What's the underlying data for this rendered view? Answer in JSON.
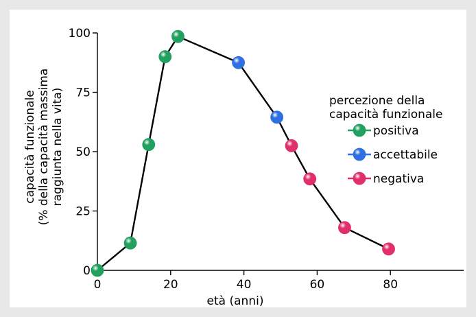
{
  "chart_data": {
    "type": "line",
    "xlabel": "età (anni)",
    "ylabel_lines": [
      "capacità funzionale",
      "(% della capacità massima",
      "raggiunta nella vita)"
    ],
    "xlim": [
      0,
      100
    ],
    "ylim": [
      0,
      100
    ],
    "x_ticks": [
      0,
      20,
      40,
      60,
      80
    ],
    "y_ticks": [
      0,
      25,
      50,
      75,
      100
    ],
    "grid": false,
    "legend_placement": "right",
    "legend": {
      "title_lines": [
        "percezione della",
        "capacità funzionale"
      ],
      "entries": [
        {
          "key": "positiva",
          "label": "positiva",
          "color": "#22a060"
        },
        {
          "key": "accettabile",
          "label": "accettabile",
          "color": "#2f6fe0"
        },
        {
          "key": "negativa",
          "label": "negativa",
          "color": "#e0306a"
        }
      ]
    },
    "line_color": "#000000",
    "points": [
      {
        "x": 0,
        "y": 0,
        "category": "positiva"
      },
      {
        "x": 9,
        "y": 11.5,
        "category": "positiva"
      },
      {
        "x": 14,
        "y": 53,
        "category": "positiva"
      },
      {
        "x": 18.5,
        "y": 90,
        "category": "positiva"
      },
      {
        "x": 22,
        "y": 98.5,
        "category": "positiva"
      },
      {
        "x": 38.5,
        "y": 87.5,
        "category": "accettabile"
      },
      {
        "x": 49,
        "y": 64.5,
        "category": "accettabile"
      },
      {
        "x": 53,
        "y": 52.5,
        "category": "negativa"
      },
      {
        "x": 58,
        "y": 38.5,
        "category": "negativa"
      },
      {
        "x": 67.5,
        "y": 18,
        "category": "negativa"
      },
      {
        "x": 79.5,
        "y": 9,
        "category": "negativa"
      }
    ]
  }
}
